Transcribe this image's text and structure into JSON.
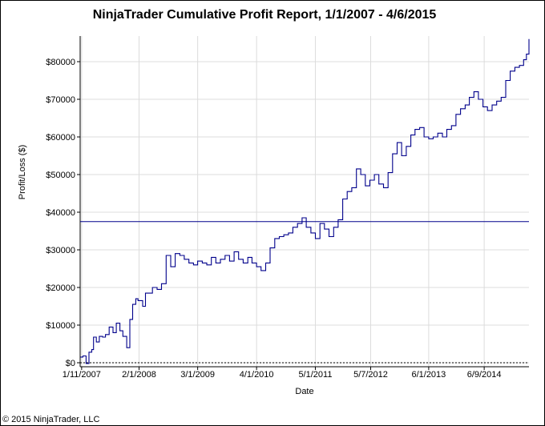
{
  "chart_data": {
    "type": "line",
    "title": "NinjaTrader Cumulative Profit Report, 1/1/2007 - 4/6/2015",
    "xlabel": "Date",
    "ylabel": "Profit/Loss ($)",
    "footer": "© 2015 NinjaTrader, LLC",
    "xlim": [
      "2007-01-01",
      "2015-04-06"
    ],
    "ylim": [
      0,
      87000
    ],
    "x_ticks": [
      {
        "date": "2007-01-11",
        "label": "1/11/2007"
      },
      {
        "date": "2008-02-01",
        "label": "2/1/2008"
      },
      {
        "date": "2009-03-01",
        "label": "3/1/2009"
      },
      {
        "date": "2010-04-01",
        "label": "4/1/2010"
      },
      {
        "date": "2011-05-01",
        "label": "5/1/2011"
      },
      {
        "date": "2012-05-07",
        "label": "5/7/2012"
      },
      {
        "date": "2013-06-01",
        "label": "6/1/2013"
      },
      {
        "date": "2014-06-09",
        "label": "6/9/2014"
      }
    ],
    "y_ticks": [
      {
        "value": 0,
        "label": "$0"
      },
      {
        "value": 10000,
        "label": "$10000"
      },
      {
        "value": 20000,
        "label": "$20000"
      },
      {
        "value": 30000,
        "label": "$30000"
      },
      {
        "value": 40000,
        "label": "$40000"
      },
      {
        "value": 50000,
        "label": "$50000"
      },
      {
        "value": 60000,
        "label": "$60000"
      },
      {
        "value": 70000,
        "label": "$70000"
      },
      {
        "value": 80000,
        "label": "$80000"
      }
    ],
    "grid": true,
    "average_line": 37500,
    "zero_line": 0,
    "line_color": "#00008b",
    "series": [
      {
        "x": [
          "2007-01-01",
          "2007-01-20",
          "2007-02-10",
          "2007-03-01",
          "2007-03-20",
          "2007-04-01",
          "2007-04-20",
          "2007-05-10",
          "2007-06-01",
          "2007-06-20",
          "2007-07-15",
          "2007-08-10",
          "2007-09-01",
          "2007-09-25",
          "2007-10-15",
          "2007-11-10",
          "2007-12-01",
          "2007-12-20",
          "2008-01-10",
          "2008-01-25",
          "2008-02-10",
          "2008-02-25",
          "2008-03-15",
          "2008-04-10",
          "2008-05-01",
          "2008-06-01",
          "2008-07-01",
          "2008-08-01",
          "2008-09-01",
          "2008-10-01",
          "2008-11-01",
          "2008-12-01",
          "2009-01-01",
          "2009-02-01",
          "2009-03-01",
          "2009-04-01",
          "2009-05-01",
          "2009-06-01",
          "2009-07-01",
          "2009-08-01",
          "2009-09-01",
          "2009-10-01",
          "2009-11-01",
          "2009-12-01",
          "2010-01-01",
          "2010-02-01",
          "2010-03-01",
          "2010-04-01",
          "2010-05-01",
          "2010-06-01",
          "2010-07-01",
          "2010-08-01",
          "2010-09-01",
          "2010-10-01",
          "2010-11-01",
          "2010-12-01",
          "2011-01-01",
          "2011-02-01",
          "2011-03-01",
          "2011-04-01",
          "2011-05-01",
          "2011-06-01",
          "2011-07-01",
          "2011-08-01",
          "2011-09-01",
          "2011-10-01",
          "2011-11-01",
          "2011-12-01",
          "2012-01-01",
          "2012-02-01",
          "2012-03-01",
          "2012-04-01",
          "2012-05-01",
          "2012-06-01",
          "2012-07-01",
          "2012-08-01",
          "2012-09-01",
          "2012-10-01",
          "2012-11-01",
          "2012-12-01",
          "2013-01-01",
          "2013-02-01",
          "2013-03-01",
          "2013-04-01",
          "2013-05-01",
          "2013-06-01",
          "2013-07-01",
          "2013-08-01",
          "2013-09-01",
          "2013-10-01",
          "2013-11-01",
          "2013-12-01",
          "2014-01-01",
          "2014-02-01",
          "2014-03-01",
          "2014-04-01",
          "2014-05-01",
          "2014-06-01",
          "2014-07-01",
          "2014-08-01",
          "2014-09-01",
          "2014-10-01",
          "2014-11-01",
          "2014-12-01",
          "2015-01-01",
          "2015-02-01",
          "2015-03-01",
          "2015-03-20",
          "2015-04-06"
        ],
        "y": [
          1500,
          1800,
          -200,
          2800,
          3500,
          6800,
          5500,
          7000,
          6800,
          7500,
          9500,
          8000,
          10500,
          8500,
          7000,
          4000,
          11500,
          15500,
          17000,
          16500,
          16500,
          15000,
          18500,
          18500,
          20000,
          19500,
          21000,
          28500,
          25500,
          29000,
          28500,
          27500,
          26500,
          26000,
          27000,
          26500,
          26000,
          28000,
          26500,
          27500,
          28500,
          27000,
          29500,
          27500,
          26500,
          28000,
          26500,
          25500,
          24500,
          26500,
          30500,
          33000,
          33500,
          34000,
          34500,
          36000,
          37000,
          38500,
          36000,
          34500,
          33000,
          37000,
          35500,
          33500,
          36000,
          38000,
          43500,
          45500,
          46500,
          51500,
          50000,
          47000,
          48500,
          50000,
          47500,
          46500,
          50500,
          55500,
          58500,
          55000,
          57500,
          60500,
          62000,
          62500,
          60000,
          59500,
          60000,
          61000,
          60000,
          62000,
          63000,
          66000,
          67500,
          68500,
          70500,
          72000,
          70000,
          68000,
          67000,
          68500,
          69500,
          70500,
          75000,
          77500,
          78500,
          79000,
          80500,
          82000,
          86000
        ]
      }
    ]
  }
}
